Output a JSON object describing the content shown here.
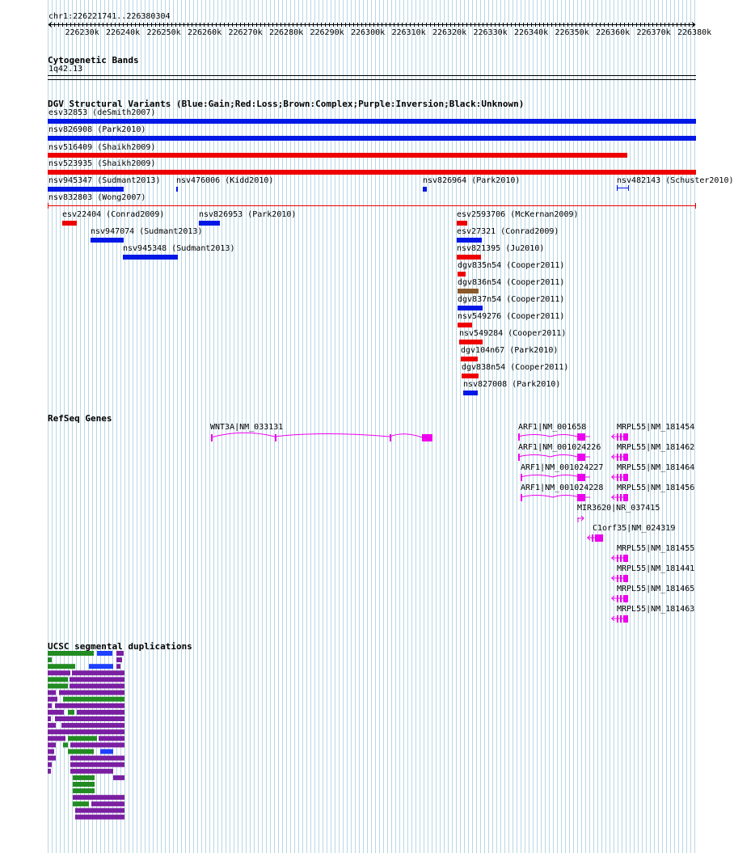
{
  "ruler": {
    "range_label": "chr1:226221741..226380304",
    "ticks": [
      "226230k",
      "226240k",
      "226250k",
      "226260k",
      "226270k",
      "226280k",
      "226290k",
      "226300k",
      "226310k",
      "226320k",
      "226330k",
      "226340k",
      "226350k",
      "226360k",
      "226370k",
      "226380k"
    ]
  },
  "colors": {
    "grid": "#b9d7e6",
    "gain": "#0018e6",
    "loss": "#ee0000",
    "complex": "#8b5a2b",
    "gene": "#ee00ee",
    "segdup_green": "#228b22",
    "segdup_purple": "#7b1fa2",
    "segdup_blue": "#1e40ff"
  },
  "cytobands": {
    "title": "Cytogenetic Bands",
    "band": "1q42.13"
  },
  "dgv": {
    "title": "DGV Structural Variants (Blue:Gain;Red:Loss;Brown:Complex;Purple:Inversion;Black:Unknown)",
    "variants": [
      {
        "label": "esv32853 (deSmith2007)",
        "type": "gain"
      },
      {
        "label": "nsv826908 (Park2010)",
        "type": "gain"
      },
      {
        "label": "nsv516409 (Shaikh2009)",
        "type": "loss"
      },
      {
        "label": "nsv523935 (Shaikh2009)",
        "type": "loss"
      },
      {
        "label": "nsv945347 (Sudmant2013)",
        "type": "gain"
      },
      {
        "label": "nsv476006 (Kidd2010)",
        "type": "gain"
      },
      {
        "label": "nsv826964 (Park2010)",
        "type": "gain"
      },
      {
        "label": "nsv482143 (Schuster2010)",
        "type": "gain"
      },
      {
        "label": "nsv832803 (Wong2007)",
        "type": "loss"
      },
      {
        "label": "esv22404 (Conrad2009)",
        "type": "loss"
      },
      {
        "label": "nsv826953 (Park2010)",
        "type": "gain"
      },
      {
        "label": "nsv947074 (Sudmant2013)",
        "type": "gain"
      },
      {
        "label": "nsv945348 (Sudmant2013)",
        "type": "gain"
      },
      {
        "label": "esv2593706 (McKernan2009)",
        "type": "loss"
      },
      {
        "label": "esv27321 (Conrad2009)",
        "type": "gain"
      },
      {
        "label": "nsv821395 (Ju2010)",
        "type": "loss"
      },
      {
        "label": "dgv835n54 (Cooper2011)",
        "type": "loss"
      },
      {
        "label": "dgv836n54 (Cooper2011)",
        "type": "complex"
      },
      {
        "label": "dgv837n54 (Cooper2011)",
        "type": "gain"
      },
      {
        "label": "nsv549276 (Cooper2011)",
        "type": "loss"
      },
      {
        "label": "nsv549284 (Cooper2011)",
        "type": "loss"
      },
      {
        "label": "dgv104n67 (Park2010)",
        "type": "loss"
      },
      {
        "label": "dgv838n54 (Cooper2011)",
        "type": "loss"
      },
      {
        "label": "nsv827008 (Park2010)",
        "type": "gain"
      }
    ]
  },
  "refseq": {
    "title": "RefSeq Genes",
    "genes": [
      "WNT3A|NM_033131",
      "ARF1|NM_001658",
      "ARF1|NM_001024226",
      "ARF1|NM_001024227",
      "ARF1|NM_001024228",
      "MIR3620|NR_037415",
      "C1orf35|NM_024319",
      "MRPL55|NM_181454",
      "MRPL55|NM_181462",
      "MRPL55|NM_181464",
      "MRPL55|NM_181456",
      "MRPL55|NM_181455",
      "MRPL55|NM_181441",
      "MRPL55|NM_181465",
      "MRPL55|NM_181463"
    ]
  },
  "segdup": {
    "title": "UCSC segmental duplications"
  }
}
